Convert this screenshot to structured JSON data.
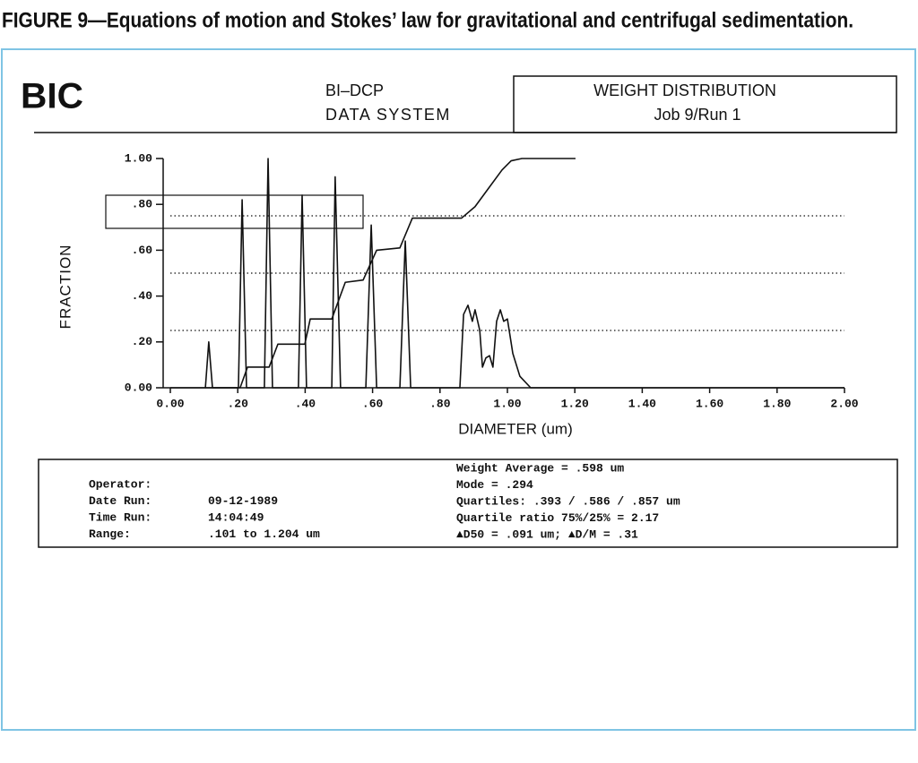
{
  "figure": {
    "caption": "FIGURE 9—Equations of motion and Stokes’ law for gravitational and centrifugal sedimentation."
  },
  "header": {
    "logo": "BIC",
    "system": "BI–DCP",
    "subsystem": "DATA SYSTEM",
    "report": "WEIGHT DISTRIBUTION",
    "job": "Job 9/Run 1"
  },
  "chart_data": {
    "type": "line",
    "xlabel": "DIAMETER (um)",
    "ylabel": "FRACTION",
    "xlim": [
      0,
      2
    ],
    "ylim": [
      0,
      1
    ],
    "xticks": [
      {
        "value": 0,
        "label": "0.00"
      },
      {
        "value": 0.2,
        "label": ".20"
      },
      {
        "value": 0.4,
        "label": ".40"
      },
      {
        "value": 0.6,
        "label": ".60"
      },
      {
        "value": 0.8,
        "label": ".80"
      },
      {
        "value": 1,
        "label": "1.00"
      },
      {
        "value": 1.2,
        "label": "1.20"
      },
      {
        "value": 1.4,
        "label": "1.40"
      },
      {
        "value": 1.6,
        "label": "1.60"
      },
      {
        "value": 1.8,
        "label": "1.80"
      },
      {
        "value": 2,
        "label": "2.00"
      }
    ],
    "yticks": [
      {
        "value": 0,
        "label": "0.00"
      },
      {
        "value": 0.2,
        "label": ".20"
      },
      {
        "value": 0.4,
        "label": ".40"
      },
      {
        "value": 0.6,
        "label": ".60"
      },
      {
        "value": 0.8,
        "label": ".80"
      },
      {
        "value": 1,
        "label": "1.00"
      }
    ],
    "hlines": [
      0.25,
      0.5,
      0.75
    ],
    "series": [
      {
        "color": "#111111",
        "x": [
          0,
          0.104,
          0.114,
          0.125,
          0.202,
          0.213,
          0.226,
          0.279,
          0.29,
          0.303,
          0.38,
          0.391,
          0.404,
          0.479,
          0.489,
          0.505,
          0.58,
          0.596,
          0.612,
          0.681,
          0.697,
          0.713,
          0.859,
          0.87,
          0.883,
          0.896,
          0.904,
          0.918,
          0.926,
          0.936,
          0.947,
          0.957,
          0.968,
          0.979,
          0.989,
          1.0,
          1.016,
          1.037,
          1.069,
          2.0
        ],
        "values": [
          0,
          0,
          0.2,
          0,
          0,
          0.82,
          0,
          0,
          1.0,
          0,
          0,
          0.84,
          0,
          0,
          0.92,
          0,
          0,
          0.71,
          0,
          0,
          0.64,
          0,
          0,
          0.32,
          0.36,
          0.29,
          0.34,
          0.25,
          0.09,
          0.13,
          0.14,
          0.09,
          0.29,
          0.34,
          0.29,
          0.3,
          0.15,
          0.05,
          0,
          0
        ]
      },
      {
        "color": "#111111",
        "x": [
          0.104,
          0.207,
          0.229,
          0.293,
          0.319,
          0.399,
          0.415,
          0.479,
          0.519,
          0.572,
          0.612,
          0.681,
          0.718,
          0.864,
          0.904,
          0.944,
          0.984,
          1.011,
          1.043,
          1.202
        ],
        "values": [
          0,
          0,
          0.09,
          0.09,
          0.19,
          0.19,
          0.3,
          0.3,
          0.46,
          0.47,
          0.6,
          0.61,
          0.74,
          0.74,
          0.79,
          0.87,
          0.95,
          0.99,
          1.0,
          1.0
        ]
      }
    ]
  },
  "report": {
    "left": [
      [
        "Operator:"
      ],
      [
        "Date Run:",
        "09-12-1989"
      ],
      [
        "Time Run:",
        "14:04:49"
      ],
      [
        "Range:",
        ".101 to 1.204 um"
      ]
    ],
    "right": [
      "Weight Average = .598 um",
      "Mode = .294",
      "Quartiles: .393 / .586 / .857 um",
      "Quartile ratio 75%/25% = 2.17",
      "▲D50 = .091 um; ▲D/M = .31"
    ]
  }
}
